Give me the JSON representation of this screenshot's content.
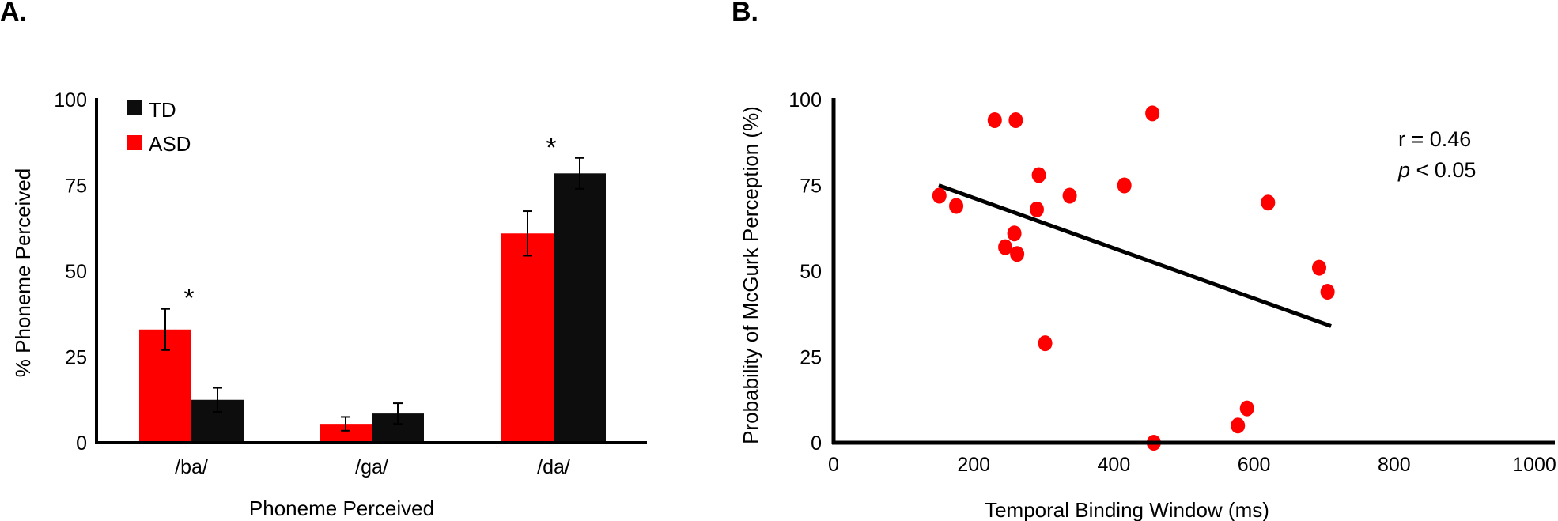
{
  "chart_data": [
    {
      "panel": "A.",
      "type": "bar",
      "title": "",
      "xlabel": "Phoneme Perceived",
      "ylabel": "% Phoneme Perceived",
      "ylim": [
        0,
        100
      ],
      "yticks": [
        "0",
        "25",
        "50",
        "75",
        "100"
      ],
      "categories": [
        "/ba/",
        "/ga/",
        "/da/"
      ],
      "legend_position": "top-left",
      "series": [
        {
          "name": "ASD",
          "color": "#ff0000",
          "values": [
            33,
            5.5,
            61
          ],
          "errors": [
            6,
            2,
            6.5
          ]
        },
        {
          "name": "TD",
          "color": "#0d0d0d",
          "values": [
            12.5,
            8.5,
            78.5
          ],
          "errors": [
            3.5,
            3,
            4.5
          ]
        }
      ],
      "significance": [
        "*",
        "",
        "*"
      ]
    },
    {
      "panel": "B.",
      "type": "scatter",
      "title": "",
      "xlabel": "Temporal Binding Window (ms)",
      "ylabel": "Probability of McGurk Perception (%)",
      "xlim": [
        0,
        1000
      ],
      "ylim": [
        0,
        100
      ],
      "xticks": [
        "0",
        "200",
        "400",
        "600",
        "800",
        "1000"
      ],
      "yticks": [
        "0",
        "25",
        "50",
        "75",
        "100"
      ],
      "point_color": "#ff0000",
      "points": [
        {
          "x": 151,
          "y": 72
        },
        {
          "x": 175,
          "y": 69
        },
        {
          "x": 230,
          "y": 94
        },
        {
          "x": 260,
          "y": 94
        },
        {
          "x": 455,
          "y": 96
        },
        {
          "x": 293,
          "y": 78
        },
        {
          "x": 290,
          "y": 68
        },
        {
          "x": 337,
          "y": 72
        },
        {
          "x": 415,
          "y": 75
        },
        {
          "x": 620,
          "y": 70
        },
        {
          "x": 258,
          "y": 61
        },
        {
          "x": 245,
          "y": 57
        },
        {
          "x": 262,
          "y": 55
        },
        {
          "x": 693,
          "y": 51
        },
        {
          "x": 705,
          "y": 44
        },
        {
          "x": 302,
          "y": 29
        },
        {
          "x": 590,
          "y": 10
        },
        {
          "x": 577,
          "y": 5
        },
        {
          "x": 457,
          "y": 0
        }
      ],
      "trendline": {
        "x": [
          150,
          710
        ],
        "y": [
          75,
          34
        ]
      },
      "annotation": {
        "r_text": "r = 0.46",
        "p_symbol": "p",
        "p_rest": " < 0.05"
      }
    }
  ]
}
